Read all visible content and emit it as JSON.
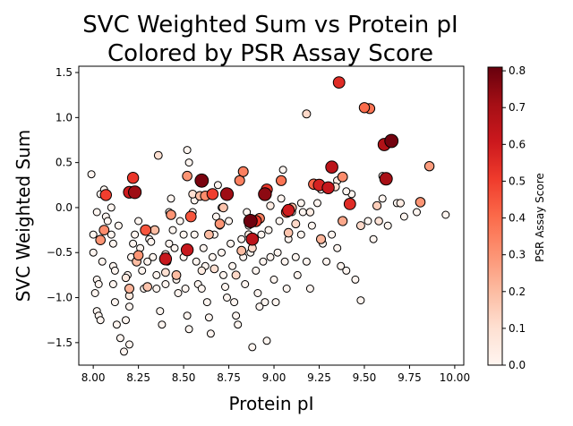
{
  "chart_data": {
    "type": "scatter",
    "title_lines": [
      "SVC Weighted Sum vs Protein pI",
      "Colored by PSR Assay Score"
    ],
    "xlabel": "Protein pI",
    "ylabel": "SVC Weighted Sum",
    "xlim": [
      7.92,
      10.05
    ],
    "ylim": [
      -1.75,
      1.57
    ],
    "xticks": [
      8.0,
      8.25,
      8.5,
      8.75,
      9.0,
      9.25,
      9.5,
      9.75,
      10.0
    ],
    "xtick_labels": [
      "8.00",
      "8.25",
      "8.50",
      "8.75",
      "9.00",
      "9.25",
      "9.50",
      "9.75",
      "10.00"
    ],
    "yticks": [
      -1.5,
      -1.0,
      -0.5,
      0.0,
      0.5,
      1.0,
      1.5
    ],
    "ytick_labels": [
      "−1.5",
      "−1.0",
      "−0.5",
      "0.0",
      "0.5",
      "1.0",
      "1.5"
    ],
    "grid": false,
    "colorbar": {
      "label": "PSR Assay Score",
      "range": [
        0.0,
        0.81
      ],
      "ticks": [
        0.0,
        0.1,
        0.2,
        0.3,
        0.4,
        0.5,
        0.6,
        0.7,
        0.8
      ],
      "tick_labels": [
        "0.0",
        "0.1",
        "0.2",
        "0.3",
        "0.4",
        "0.5",
        "0.6",
        "0.7",
        "0.8"
      ],
      "colormap": "Reds"
    },
    "points": [
      [
        7.99,
        0.37,
        0.0
      ],
      [
        8.02,
        -0.05,
        0.0
      ],
      [
        8.0,
        -0.3,
        0.0
      ],
      [
        8.0,
        -0.5,
        0.0
      ],
      [
        8.02,
        -0.8,
        0.0
      ],
      [
        8.01,
        -0.95,
        0.0
      ],
      [
        8.02,
        -1.15,
        0.0
      ],
      [
        8.03,
        -1.2,
        0.0
      ],
      [
        8.04,
        -1.25,
        0.0
      ],
      [
        8.03,
        -0.85,
        0.0
      ],
      [
        8.05,
        -0.6,
        0.0
      ],
      [
        8.04,
        0.15,
        0.0
      ],
      [
        8.06,
        0.2,
        0.0
      ],
      [
        8.07,
        -0.1,
        0.0
      ],
      [
        8.08,
        -0.15,
        0.0
      ],
      [
        8.1,
        0.0,
        0.0
      ],
      [
        8.1,
        -0.3,
        0.0
      ],
      [
        8.11,
        -0.65,
        0.0
      ],
      [
        8.12,
        -0.7,
        0.0
      ],
      [
        8.11,
        -0.85,
        0.0
      ],
      [
        8.12,
        -1.05,
        0.0
      ],
      [
        8.13,
        -1.3,
        0.0
      ],
      [
        8.15,
        -1.45,
        0.0
      ],
      [
        8.17,
        -1.6,
        0.0
      ],
      [
        8.2,
        -1.52,
        0.0
      ],
      [
        8.18,
        -1.25,
        0.0
      ],
      [
        8.2,
        -1.1,
        0.0
      ],
      [
        8.19,
        -0.75,
        0.0
      ],
      [
        8.21,
        -0.55,
        0.0
      ],
      [
        8.22,
        -0.4,
        0.0
      ],
      [
        8.23,
        -0.3,
        0.0
      ],
      [
        8.24,
        0.15,
        0.0
      ],
      [
        8.25,
        -0.15,
        0.0
      ],
      [
        8.26,
        -0.45,
        0.0
      ],
      [
        8.27,
        -0.7,
        0.0
      ],
      [
        8.28,
        -0.9,
        0.0
      ],
      [
        8.3,
        -0.6,
        0.0
      ],
      [
        8.31,
        -0.35,
        0.0
      ],
      [
        8.33,
        -0.55,
        0.0
      ],
      [
        8.35,
        -0.75,
        0.0
      ],
      [
        8.35,
        -0.9,
        0.0
      ],
      [
        8.37,
        -1.15,
        0.0
      ],
      [
        8.38,
        -1.3,
        0.0
      ],
      [
        8.4,
        -0.85,
        0.0
      ],
      [
        8.41,
        -0.6,
        0.0
      ],
      [
        8.42,
        -0.4,
        0.0
      ],
      [
        8.42,
        -0.05,
        0.0
      ],
      [
        8.43,
        0.1,
        0.0
      ],
      [
        8.44,
        -0.25,
        0.0
      ],
      [
        8.45,
        -0.45,
        0.0
      ],
      [
        8.46,
        -0.8,
        0.0
      ],
      [
        8.47,
        -0.95,
        0.0
      ],
      [
        8.48,
        -0.15,
        0.0
      ],
      [
        8.5,
        -0.3,
        0.0
      ],
      [
        8.5,
        -0.55,
        0.0
      ],
      [
        8.51,
        -0.9,
        0.0
      ],
      [
        8.52,
        -1.2,
        0.0
      ],
      [
        8.53,
        -1.35,
        0.0
      ],
      [
        8.52,
        0.64,
        0.0
      ],
      [
        8.53,
        0.5,
        0.0
      ],
      [
        8.55,
        -0.05,
        0.0
      ],
      [
        8.56,
        -0.3,
        0.0
      ],
      [
        8.57,
        -0.6,
        0.0
      ],
      [
        8.58,
        -0.85,
        0.0
      ],
      [
        8.6,
        -0.9,
        0.0
      ],
      [
        8.61,
        -0.45,
        0.0
      ],
      [
        8.62,
        -0.65,
        0.0
      ],
      [
        8.63,
        -1.05,
        0.0
      ],
      [
        8.64,
        -1.22,
        0.0
      ],
      [
        8.65,
        -1.4,
        0.0
      ],
      [
        8.66,
        -0.55,
        0.0
      ],
      [
        8.67,
        -0.3,
        0.0
      ],
      [
        8.68,
        -0.1,
        0.0
      ],
      [
        8.69,
        0.25,
        0.0
      ],
      [
        8.7,
        -0.2,
        0.0
      ],
      [
        8.71,
        -0.5,
        0.0
      ],
      [
        8.72,
        -0.75,
        0.0
      ],
      [
        8.73,
        -0.88,
        0.0
      ],
      [
        8.74,
        -1.0,
        0.0
      ],
      [
        8.75,
        -0.15,
        0.0
      ],
      [
        8.76,
        -0.4,
        0.0
      ],
      [
        8.77,
        -0.65,
        0.0
      ],
      [
        8.78,
        -1.05,
        0.0
      ],
      [
        8.79,
        -1.2,
        0.0
      ],
      [
        8.8,
        -1.3,
        0.0
      ],
      [
        8.82,
        -0.35,
        0.0
      ],
      [
        8.83,
        -0.55,
        0.0
      ],
      [
        8.84,
        -0.85,
        0.0
      ],
      [
        8.85,
        -0.05,
        0.0
      ],
      [
        8.86,
        -0.2,
        0.0
      ],
      [
        8.87,
        -0.5,
        0.0
      ],
      [
        8.88,
        -1.55,
        0.0
      ],
      [
        8.9,
        -0.7,
        0.0
      ],
      [
        8.91,
        -0.95,
        0.0
      ],
      [
        8.92,
        -1.1,
        0.0
      ],
      [
        8.93,
        -0.3,
        0.0
      ],
      [
        8.94,
        -0.6,
        0.0
      ],
      [
        8.95,
        -1.05,
        0.0
      ],
      [
        8.96,
        -1.48,
        0.0
      ],
      [
        8.97,
        -0.25,
        0.0
      ],
      [
        8.98,
        -0.55,
        0.0
      ],
      [
        9.0,
        -0.8,
        0.0
      ],
      [
        9.01,
        -1.05,
        0.0
      ],
      [
        9.02,
        -0.5,
        0.0
      ],
      [
        9.03,
        -0.15,
        0.0
      ],
      [
        9.04,
        0.1,
        0.0
      ],
      [
        9.05,
        0.42,
        0.0
      ],
      [
        9.06,
        -0.6,
        0.0
      ],
      [
        9.07,
        -0.9,
        0.0
      ],
      [
        9.08,
        -0.35,
        0.0
      ],
      [
        9.1,
        -0.05,
        0.0
      ],
      [
        9.12,
        -0.55,
        0.0
      ],
      [
        9.13,
        -0.75,
        0.0
      ],
      [
        9.15,
        -0.3,
        0.0
      ],
      [
        9.16,
        -0.05,
        0.0
      ],
      [
        9.18,
        -0.6,
        0.0
      ],
      [
        9.2,
        -0.9,
        0.0
      ],
      [
        9.21,
        -0.2,
        0.0
      ],
      [
        9.24,
        0.05,
        0.0
      ],
      [
        9.27,
        -0.4,
        0.0
      ],
      [
        9.29,
        -0.6,
        0.0
      ],
      [
        9.32,
        -0.3,
        0.0
      ],
      [
        9.35,
        -0.45,
        0.0
      ],
      [
        9.37,
        -0.65,
        0.0
      ],
      [
        9.4,
        -0.7,
        0.0
      ],
      [
        9.43,
        0.15,
        0.0
      ],
      [
        9.45,
        -0.8,
        0.0
      ],
      [
        9.48,
        -1.03,
        0.0
      ],
      [
        9.52,
        -0.15,
        0.0
      ],
      [
        9.55,
        -0.35,
        0.0
      ],
      [
        9.6,
        0.1,
        0.0
      ],
      [
        9.63,
        -0.2,
        0.0
      ],
      [
        9.68,
        0.05,
        0.0
      ],
      [
        9.72,
        -0.1,
        0.0
      ],
      [
        9.79,
        -0.05,
        0.0
      ],
      [
        9.95,
        -0.08,
        0.0
      ],
      [
        8.56,
        0.08,
        0.0
      ],
      [
        8.71,
        0.0,
        0.0
      ],
      [
        8.32,
        -0.38,
        0.0
      ],
      [
        8.11,
        -0.4,
        0.0
      ],
      [
        8.14,
        -0.2,
        0.0
      ],
      [
        9.26,
        0.2,
        0.0
      ],
      [
        9.4,
        0.18,
        0.0
      ],
      [
        9.15,
        0.05,
        0.0
      ],
      [
        9.6,
        0.35,
        0.02
      ],
      [
        9.7,
        0.05,
        0.04
      ],
      [
        9.35,
        0.3,
        0.05
      ],
      [
        9.2,
        -0.05,
        0.04
      ],
      [
        8.98,
        0.02,
        0.04
      ],
      [
        8.86,
        -0.3,
        0.05
      ],
      [
        8.6,
        -0.7,
        0.05
      ],
      [
        8.4,
        -0.52,
        0.06
      ],
      [
        8.2,
        -0.98,
        0.06
      ],
      [
        8.18,
        -0.78,
        0.05
      ],
      [
        8.36,
        0.58,
        0.1
      ],
      [
        8.4,
        -0.72,
        0.1
      ],
      [
        8.55,
        0.15,
        0.1
      ],
      [
        8.67,
        -0.68,
        0.1
      ],
      [
        8.79,
        -0.75,
        0.12
      ],
      [
        8.88,
        -0.45,
        0.12
      ],
      [
        9.12,
        -0.18,
        0.12
      ],
      [
        9.18,
        1.04,
        0.12
      ],
      [
        9.34,
        0.23,
        0.1
      ],
      [
        9.48,
        -0.2,
        0.12
      ],
      [
        9.57,
        0.02,
        0.15
      ],
      [
        9.58,
        -0.15,
        0.08
      ],
      [
        8.3,
        -0.88,
        0.18
      ],
      [
        8.24,
        -0.6,
        0.2
      ],
      [
        8.2,
        -0.9,
        0.22
      ],
      [
        8.34,
        -0.25,
        0.2
      ],
      [
        8.46,
        -0.75,
        0.2
      ],
      [
        8.59,
        0.13,
        0.2
      ],
      [
        8.64,
        -0.3,
        0.2
      ],
      [
        8.72,
        0.0,
        0.18
      ],
      [
        8.82,
        -0.48,
        0.2
      ],
      [
        9.08,
        -0.28,
        0.18
      ],
      [
        9.1,
        0.0,
        0.2
      ],
      [
        9.26,
        -0.35,
        0.22
      ],
      [
        9.38,
        -0.15,
        0.25
      ],
      [
        9.86,
        0.46,
        0.28
      ],
      [
        9.81,
        0.06,
        0.3
      ],
      [
        9.38,
        0.34,
        0.32
      ],
      [
        8.04,
        -0.36,
        0.3
      ],
      [
        8.06,
        -0.25,
        0.32
      ],
      [
        8.25,
        -0.53,
        0.3
      ],
      [
        8.43,
        -0.08,
        0.3
      ],
      [
        8.52,
        0.35,
        0.3
      ],
      [
        8.62,
        0.13,
        0.32
      ],
      [
        8.7,
        -0.18,
        0.3
      ],
      [
        8.81,
        0.3,
        0.35
      ],
      [
        8.83,
        0.4,
        0.35
      ],
      [
        8.92,
        -0.12,
        0.35
      ],
      [
        9.04,
        0.3,
        0.38
      ],
      [
        9.5,
        1.11,
        0.4
      ],
      [
        9.53,
        1.1,
        0.38
      ],
      [
        9.22,
        0.26,
        0.42
      ],
      [
        9.07,
        -0.05,
        0.45
      ],
      [
        8.54,
        -0.1,
        0.45
      ],
      [
        8.29,
        -0.25,
        0.45
      ],
      [
        8.07,
        0.14,
        0.5
      ],
      [
        8.22,
        0.33,
        0.52
      ],
      [
        8.66,
        0.15,
        0.5
      ],
      [
        8.9,
        -0.15,
        0.52
      ],
      [
        8.96,
        0.2,
        0.52
      ],
      [
        9.36,
        1.39,
        0.55
      ],
      [
        9.42,
        0.04,
        0.55
      ],
      [
        9.25,
        0.25,
        0.58
      ],
      [
        9.08,
        -0.03,
        0.6
      ],
      [
        9.3,
        0.22,
        0.62
      ],
      [
        8.4,
        -0.57,
        0.62
      ],
      [
        8.52,
        -0.47,
        0.62
      ],
      [
        8.88,
        -0.35,
        0.65
      ],
      [
        8.2,
        0.17,
        0.6
      ],
      [
        9.32,
        0.45,
        0.65
      ],
      [
        9.61,
        0.7,
        0.68
      ],
      [
        9.62,
        0.32,
        0.7
      ],
      [
        8.23,
        0.17,
        0.72
      ],
      [
        8.74,
        0.15,
        0.72
      ],
      [
        8.95,
        0.15,
        0.75
      ],
      [
        8.6,
        0.3,
        0.78
      ],
      [
        9.65,
        0.74,
        0.79
      ],
      [
        8.87,
        -0.15,
        0.8
      ]
    ]
  }
}
